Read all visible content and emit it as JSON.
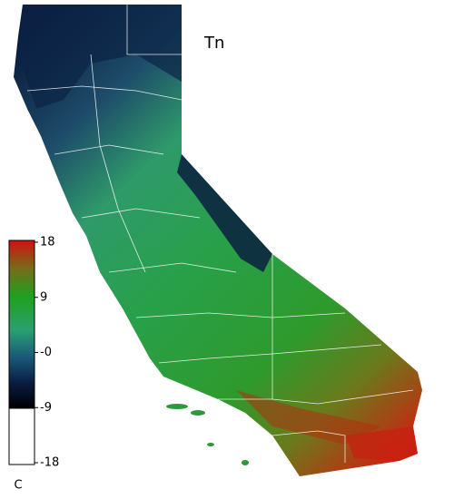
{
  "map": {
    "title": "Tn",
    "colorbar": {
      "ylim": [
        -18,
        18
      ],
      "ticks": [
        18,
        9,
        {
          "value": 0,
          "label": "-0"
        },
        -9,
        -18
      ],
      "unit": "C"
    }
  }
}
